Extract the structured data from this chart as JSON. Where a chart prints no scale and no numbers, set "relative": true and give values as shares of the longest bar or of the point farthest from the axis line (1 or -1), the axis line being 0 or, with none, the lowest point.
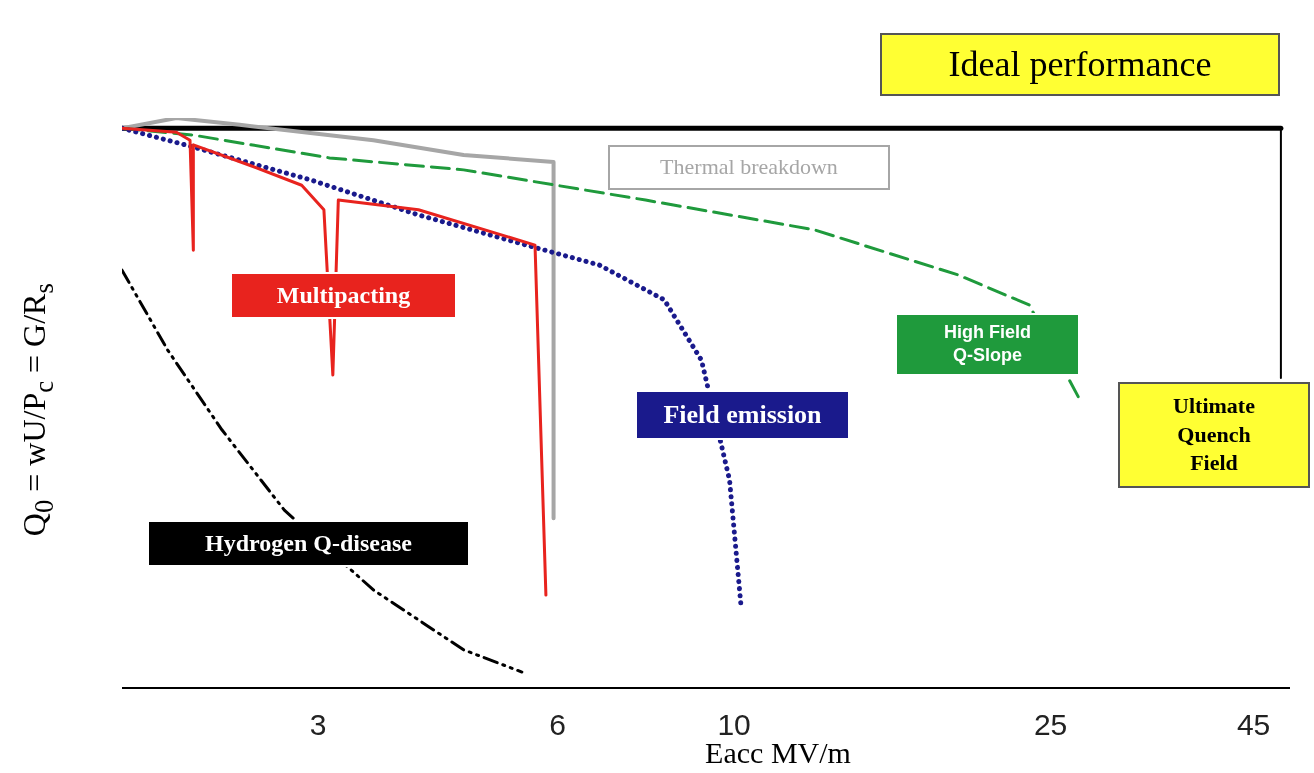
{
  "chart_data": {
    "type": "line",
    "relative": true,
    "log": "x",
    "xlim": [
      1.7,
      50
    ],
    "xticks": [
      3,
      6,
      10,
      25,
      45
    ],
    "xlabel": "Eacc MV/m",
    "ylabel": "Q$_{0}$ = wU/P$_{c}$ = G/R$_{s}$",
    "marker": "none",
    "legend": false,
    "series": [
      {
        "name": "Ideal performance",
        "color": "#000000",
        "line_style": "solid",
        "x": [
          1.7,
          48.7
        ],
        "values": [
          0.982,
          0.982
        ]
      },
      {
        "name": "Ultimate Quench Field",
        "color": "#000000",
        "line_style": "solid",
        "x": [
          48.7,
          48.7
        ],
        "values": [
          0.982,
          0.544
        ]
      },
      {
        "name": "Thermal breakdown",
        "color": "#a6a6a6",
        "line_style": "solid",
        "x": [
          1.7,
          1.99,
          2.39,
          3.52,
          4.57,
          5.93,
          5.93
        ],
        "values": [
          0.982,
          1.0,
          0.988,
          0.961,
          0.935,
          0.923,
          0.298
        ]
      },
      {
        "name": "High Field Q-Slope",
        "color": "#1f9a3c",
        "line_style": "dashed",
        "x": [
          1.7,
          2.09,
          3.1,
          4.57,
          7.74,
          12.6,
          19.1,
          23.5,
          27.3
        ],
        "values": [
          0.982,
          0.97,
          0.93,
          0.909,
          0.856,
          0.804,
          0.725,
          0.672,
          0.502
        ]
      },
      {
        "name": "Field emission",
        "color": "#1a1a8c",
        "line_style": "dotted",
        "x": [
          1.7,
          2.04,
          2.94,
          4.01,
          5.48,
          6.77,
          8.17,
          9.1,
          9.87,
          10.2
        ],
        "values": [
          0.982,
          0.953,
          0.891,
          0.83,
          0.777,
          0.742,
          0.681,
          0.575,
          0.365,
          0.146
        ]
      },
      {
        "name": "Multipacting",
        "color": "#e8231e",
        "line_style": "solid",
        "x": [
          1.7,
          1.99,
          2.07,
          2.09,
          2.09,
          2.45,
          2.86,
          3.05,
          3.13,
          3.18,
          4.01,
          5.62,
          5.8
        ],
        "values": [
          0.982,
          0.975,
          0.961,
          0.768,
          0.953,
          0.918,
          0.882,
          0.839,
          0.549,
          0.856,
          0.839,
          0.777,
          0.163
        ]
      },
      {
        "name": "Hydrogen Q-disease",
        "color": "#000000",
        "line_style": "dashdot",
        "x": [
          1.7,
          1.94,
          2.27,
          2.72,
          3.52,
          4.57,
          5.41
        ],
        "values": [
          0.733,
          0.593,
          0.453,
          0.312,
          0.172,
          0.067,
          0.028
        ]
      }
    ]
  }
}
